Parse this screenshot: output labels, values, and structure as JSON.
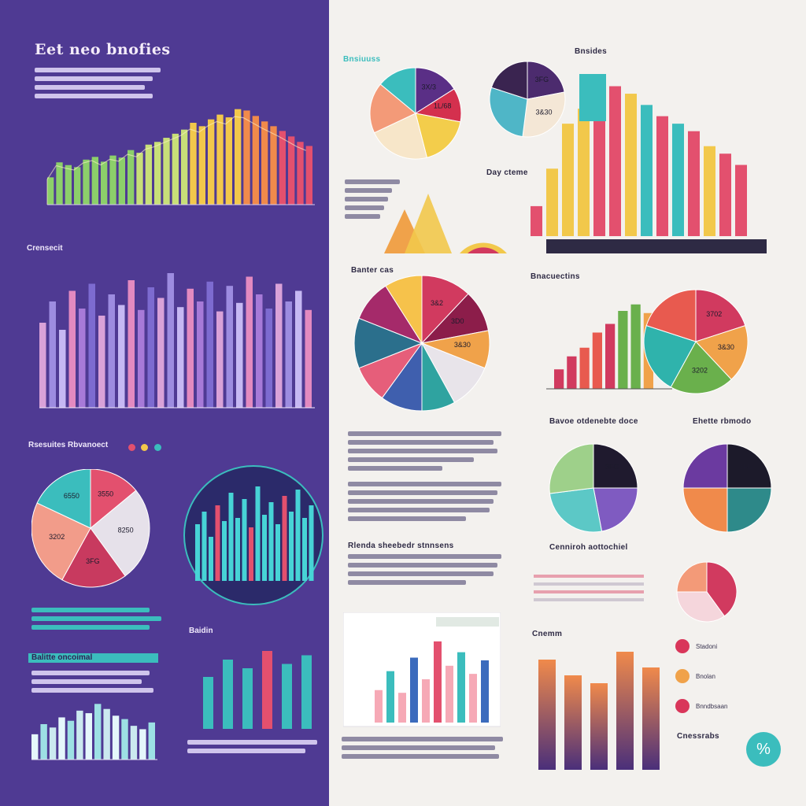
{
  "header": {
    "title": "Eet neo bnofies",
    "subtitle": "Bnsides"
  },
  "sections": {
    "s2": "Crensecit",
    "s3": "Rsesuites Rbvanoect",
    "s4": "Balitte oncoimal",
    "s5": "Bnsiuuss",
    "s6": "Banter cas",
    "s7": "Day cteme",
    "s8": "Bnacuectins",
    "s9": "Bavoe otdenebte doce",
    "s10": "Ehette rbmodo",
    "s11": "Cenniroh aottochiel",
    "s12": "Rlenda sheebedr stnnsens",
    "s13": "Baidin",
    "s14": "Cnemm",
    "s15": "Cnessrabs",
    "s16": "Stadoni"
  },
  "labels": {
    "a": "3550",
    "b": "8250",
    "c": "3FG",
    "d": "3202",
    "e": "6550",
    "f": "3X/3",
    "g": "1L/68",
    "h": "3&30",
    "i": "3&2",
    "j": "3D0",
    "k": "3702"
  },
  "legend": [
    {
      "label": "Stadoni",
      "color": "#d9365a"
    },
    {
      "label": "Bnolan",
      "color": "#f0a24a"
    },
    {
      "label": "Bnndbsaan",
      "color": "#d9365a"
    }
  ],
  "colors": {
    "purple": "#4f3a93",
    "teal": "#3bbdbd",
    "coral": "#e3506e",
    "yellow": "#f2c84b",
    "orange": "#f08a4b",
    "green": "#8ccf6a"
  },
  "chart_data": [
    {
      "type": "bar",
      "title": "Eet neo bnofies",
      "values": [
        40,
        62,
        58,
        55,
        66,
        70,
        63,
        72,
        69,
        80,
        76,
        88,
        92,
        98,
        104,
        110,
        120,
        115,
        125,
        132,
        128,
        140,
        138,
        130,
        122,
        115,
        108,
        100,
        92,
        86
      ]
    },
    {
      "type": "bar",
      "title": "Crensecit",
      "values": [
        120,
        150,
        110,
        165,
        140,
        175,
        130,
        160,
        145,
        180,
        138,
        170,
        155,
        190,
        142,
        168,
        150,
        178,
        136,
        172,
        148,
        185,
        160,
        140,
        175,
        150,
        165,
        138
      ]
    },
    {
      "type": "pie",
      "title": "Rsesuites Rbvanoect",
      "values": [
        14,
        26,
        18,
        24,
        18
      ],
      "colors": [
        "#e3506e",
        "#e6e1ea",
        "#c83a5f",
        "#f29c8a",
        "#3bbdbd"
      ]
    },
    {
      "type": "bar",
      "title": "Rsesuites Rbvanoect",
      "values": [
        90,
        110,
        70,
        120,
        95,
        140,
        100,
        130,
        85,
        150,
        105,
        125,
        90,
        135,
        110,
        145,
        100,
        120
      ]
    },
    {
      "type": "bar",
      "title": "Balitte oncoimal",
      "values": [
        30,
        42,
        38,
        50,
        46,
        58,
        55,
        66,
        60,
        52,
        48,
        40,
        36,
        44
      ]
    },
    {
      "type": "bar",
      "title": "Baidin",
      "values": [
        60,
        80,
        70,
        90,
        75,
        85
      ]
    },
    {
      "type": "pie",
      "title": "Bnsiuuss",
      "values": [
        16,
        12,
        18,
        22,
        18,
        14
      ],
      "colors": [
        "#5a2f86",
        "#d4304e",
        "#f3cd4b",
        "#f7e6c9",
        "#f39a78",
        "#3bbdbd"
      ]
    },
    {
      "type": "pie",
      "title": "Bnsiuuss",
      "values": [
        22,
        30,
        28,
        20
      ],
      "colors": [
        "#4c2b6e",
        "#f4e7d6",
        "#4fb6c7",
        "#3a2450"
      ]
    },
    {
      "type": "bar",
      "title": "Day cteme",
      "values": [
        40,
        90,
        150,
        170,
        185,
        200,
        190,
        175,
        160,
        150,
        140,
        120,
        110,
        95
      ]
    },
    {
      "type": "pie",
      "title": "Banter cas",
      "values": [
        12,
        10,
        9,
        11,
        8,
        10,
        9,
        12,
        10,
        9
      ],
      "colors": [
        "#d13a5f",
        "#8c1d4a",
        "#f0a24a",
        "#e8e4ea",
        "#2fa3a0",
        "#3f5fae",
        "#e65e7a",
        "#2b6f8c",
        "#a52a6a",
        "#f6c24b"
      ]
    },
    {
      "type": "pie",
      "title": "Bnacuectins",
      "values": [
        20,
        18,
        20,
        22,
        20
      ],
      "colors": [
        "#d13a5f",
        "#f0a24a",
        "#6ab04c",
        "#2fb3ac",
        "#e85a4f"
      ]
    },
    {
      "type": "bar",
      "title": "Bnacuectins",
      "values": [
        18,
        30,
        38,
        52,
        60,
        72,
        78,
        70
      ]
    },
    {
      "type": "pie",
      "title": "Bavoe otdenebte doce",
      "values": [
        25,
        22,
        26,
        27
      ],
      "colors": [
        "#1f1a2e",
        "#7f5bc1",
        "#5cc8c6",
        "#9ed08a"
      ]
    },
    {
      "type": "pie",
      "title": "Ehette rbmodo",
      "values": [
        25,
        25,
        25,
        25
      ],
      "colors": [
        "#1c1a2a",
        "#2e8a8a",
        "#f08a4b",
        "#6b3aa0"
      ]
    },
    {
      "type": "pie",
      "title": "Rlenda sheebedr stnnsens",
      "values": [
        40,
        35,
        25
      ],
      "colors": [
        "#d13a5f",
        "#f5d6dc",
        "#f39a78"
      ]
    },
    {
      "type": "bar",
      "title": "Cenniroh aottochiel",
      "values": [
        60,
        95,
        55,
        120,
        80,
        150,
        105,
        130,
        90,
        115
      ]
    },
    {
      "type": "bar",
      "title": "Cnemm",
      "values": [
        140,
        120,
        110,
        150,
        130
      ]
    }
  ]
}
